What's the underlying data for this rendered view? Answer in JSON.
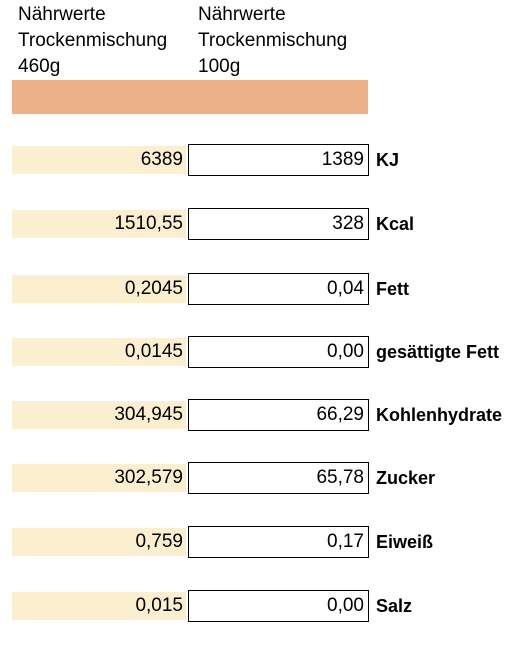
{
  "header": {
    "col1": {
      "line1": "Nährwerte",
      "line2": "Trockenmischung",
      "line3": "460g"
    },
    "col2": {
      "line1": "Nährwerte",
      "line2": "Trockenmischung",
      "line3": "100g"
    }
  },
  "colors": {
    "header_bar": "#edb18a",
    "value_cell": "#fcefcf"
  },
  "rows": [
    {
      "value_460g": "6389",
      "value_100g": "1389",
      "label": "KJ"
    },
    {
      "value_460g": "1510,55",
      "value_100g": "328",
      "label": "Kcal"
    },
    {
      "value_460g": "0,2045",
      "value_100g": "0,04",
      "label": "Fett"
    },
    {
      "value_460g": "0,0145",
      "value_100g": "0,00",
      "label": "gesättigte Fett"
    },
    {
      "value_460g": "304,945",
      "value_100g": "66,29",
      "label": "Kohlenhydrate"
    },
    {
      "value_460g": "302,579",
      "value_100g": "65,78",
      "label": "Zucker"
    },
    {
      "value_460g": "0,759",
      "value_100g": "0,17",
      "label": "Eiweiß"
    },
    {
      "value_460g": "0,015",
      "value_100g": "0,00",
      "label": "Salz"
    }
  ]
}
